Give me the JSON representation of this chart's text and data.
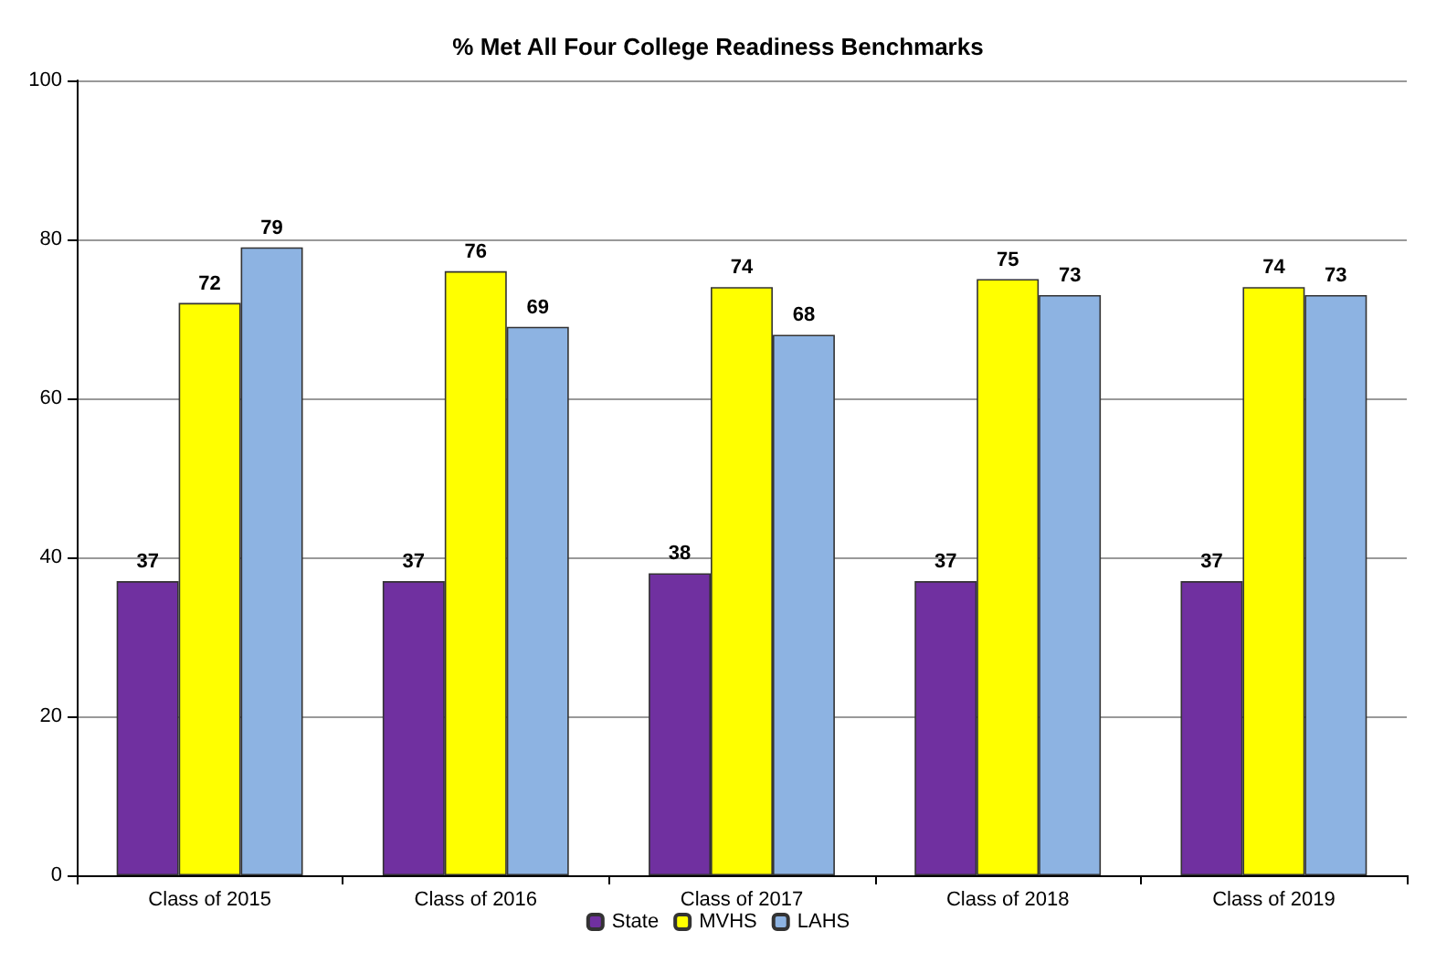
{
  "chart_data": {
    "type": "bar",
    "title": "% Met All Four College Readiness Benchmarks",
    "categories": [
      "Class of 2015",
      "Class of 2016",
      "Class of 2017",
      "Class of 2018",
      "Class of 2019"
    ],
    "series": [
      {
        "name": "State",
        "color": "#7030a0",
        "values": [
          37,
          37,
          38,
          37,
          37
        ]
      },
      {
        "name": "MVHS",
        "color": "#ffff00",
        "values": [
          72,
          76,
          74,
          75,
          74
        ]
      },
      {
        "name": "LAHS",
        "color": "#8db3e2",
        "values": [
          79,
          69,
          68,
          73,
          73
        ]
      }
    ],
    "ylim": [
      0,
      100
    ],
    "yticks": [
      0,
      20,
      40,
      60,
      80,
      100
    ],
    "grid": "y",
    "legend": "bottom",
    "data_labels": true
  }
}
